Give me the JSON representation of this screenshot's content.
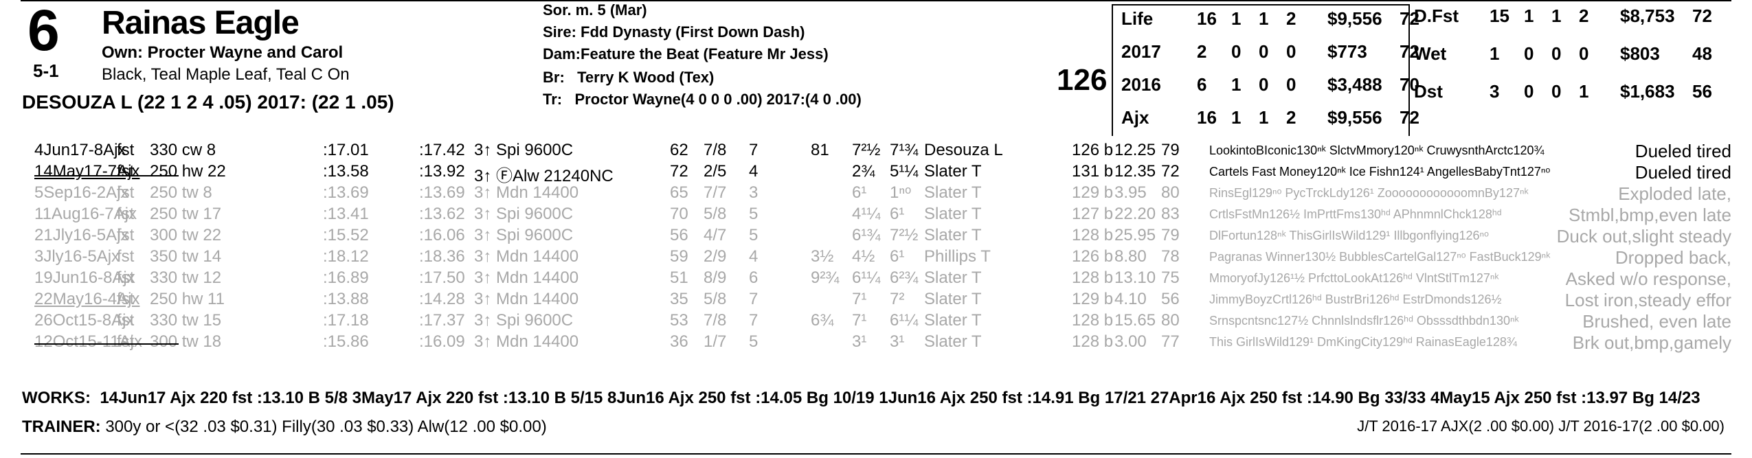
{
  "entry": {
    "post_position": "6",
    "odds": "5-1",
    "horse_name": "Rainas Eagle",
    "owner": "Own: Procter Wayne and Carol",
    "silks": "Black, Teal Maple Leaf, Teal C On",
    "jockey_line": "DESOUZA L (22 1 2 4 .05) 2017: (22 1 .05)",
    "weight": "126"
  },
  "pedigree": {
    "sex_age": "Sor. m. 5 (Mar)",
    "sire_label": "Sire:",
    "sire": "Fdd Dynasty (First Down Dash)",
    "dam_label": "Dam:",
    "dam": "Feature the Beat (Feature Mr Jess)",
    "breeder_label": "Br:",
    "breeder": "Terry K Wood (Tex)",
    "trainer_label": "Tr:",
    "trainer": "Proctor Wayne(4 0 0 0 .00) 2017:(4 0 .00)"
  },
  "records_left": [
    {
      "label": "Life",
      "starts": "16",
      "w": "1",
      "p": "1",
      "s": "2",
      "earn": "$9,556",
      "sp": "72"
    },
    {
      "label": "2017",
      "starts": "2",
      "w": "0",
      "p": "0",
      "s": "0",
      "earn": "$773",
      "sp": "72"
    },
    {
      "label": "2016",
      "starts": "6",
      "w": "1",
      "p": "0",
      "s": "0",
      "earn": "$3,488",
      "sp": "70"
    },
    {
      "label": "Ajx",
      "starts": "16",
      "w": "1",
      "p": "1",
      "s": "2",
      "earn": "$9,556",
      "sp": "72"
    }
  ],
  "records_right": [
    {
      "label": "D.Fst",
      "starts": "15",
      "w": "1",
      "p": "1",
      "s": "2",
      "earn": "$8,753",
      "sp": "72"
    },
    {
      "label": "Wet",
      "starts": "1",
      "w": "0",
      "p": "0",
      "s": "0",
      "earn": "$803",
      "sp": "48"
    },
    {
      "label": "Dst",
      "starts": "3",
      "w": "0",
      "p": "0",
      "s": "1",
      "earn": "$1,683",
      "sp": "56"
    }
  ],
  "races": [
    {
      "date": "4Jun17-8Ajx",
      "cond": "fst",
      "dist": "330 cw 8",
      "f1": ":17.01",
      "f2": ":17.42",
      "cls": "3↑ Spi 9600C",
      "sp": "62",
      "pp": "7/8",
      "st": "7",
      "c1": "81",
      "c2": "7²½",
      "fin": "7¹¾",
      "jock": "Desouza L",
      "wt": "126 b",
      "odds": "12.25",
      "ix": "79",
      "top3": "LookintoBIconic130ⁿᵏ SlctvMmory120ⁿᵏ CruwysnthArctc120¾",
      "comment": "Dueled tired",
      "dim": false,
      "ul": false
    },
    {
      "date": "14May17-7Ajx",
      "cond": "fst",
      "dist": "250 hw 22",
      "f1": ":13.58",
      "f2": ":13.92",
      "cls": "3↑ ⒻAlw 21240NC",
      "sp": "72",
      "pp": "2/5",
      "st": "4",
      "c1": "",
      "c2": "2¾",
      "fin": "5¹¼",
      "jock": "Slater T",
      "wt": "131 b",
      "odds": "12.35",
      "ix": "72",
      "top3": "Cartels Fast Money120ⁿᵏ Ice Fishn124¹ AngellesBabyTnt127ⁿᵒ",
      "comment": "Dueled tired",
      "dim": false,
      "ul": true
    },
    {
      "date": "5Sep16-2Ajx",
      "cond": "fst",
      "dist": "250 tw 8",
      "f1": ":13.69",
      "f2": ":13.69",
      "cls": "3↑ Mdn 14400",
      "sp": "65",
      "pp": "7/7",
      "st": "3",
      "c1": "",
      "c2": "6¹",
      "fin": "1ⁿᵒ",
      "jock": "Slater T",
      "wt": "129 b",
      "odds": "3.95",
      "ix": "80",
      "top3": "RinsEgl129ⁿᵒ PycTrckLdy126¹ ZoooooooooooomnBy127ⁿᵏ",
      "comment": "Exploded late,",
      "dim": true,
      "ul": false
    },
    {
      "date": "11Aug16-7Ajx",
      "cond": "fst",
      "dist": "250 tw 17",
      "f1": ":13.41",
      "f2": ":13.62",
      "cls": "3↑ Spi 9600C",
      "sp": "70",
      "pp": "5/8",
      "st": "5",
      "c1": "",
      "c2": "4¹¼",
      "fin": "6¹",
      "jock": "Slater T",
      "wt": "127 b",
      "odds": "22.20",
      "ix": "83",
      "top3": "CrtlsFstMn126½ ImPrttFms130ʰᵈ APhnmnlChck128ʰᵈ",
      "comment": "Stmbl,bmp,even late",
      "dim": true,
      "ul": false
    },
    {
      "date": "21Jly16-5Ajx",
      "cond": "fst",
      "dist": "300 tw 22",
      "f1": ":15.52",
      "f2": ":16.06",
      "cls": "3↑ Spi 9600C",
      "sp": "56",
      "pp": "4/7",
      "st": "5",
      "c1": "",
      "c2": "6¹¾",
      "fin": "7²½",
      "jock": "Slater T",
      "wt": "128 b",
      "odds": "25.95",
      "ix": "79",
      "top3": "DlFortun128ⁿᵏ ThisGirlIsWild129¹ Illbgonflying126ⁿᵒ",
      "comment": "Duck out,slight steady",
      "dim": true,
      "ul": false
    },
    {
      "date": "3Jly16-5Ajx",
      "cond": "fst",
      "dist": "350 tw 14",
      "f1": ":18.12",
      "f2": ":18.36",
      "cls": "3↑ Mdn 14400",
      "sp": "59",
      "pp": "2/9",
      "st": "4",
      "c1": "3½",
      "c2": "4½",
      "fin": "6¹",
      "jock": "Phillips T",
      "wt": "126 b",
      "odds": "8.80",
      "ix": "78",
      "top3": "Pagranas Winner130½ BubblesCartelGal127ⁿᵒ FastBuck129ⁿᵏ",
      "comment": "Dropped back,",
      "dim": true,
      "ul": false
    },
    {
      "date": "19Jun16-8Ajx",
      "cond": "fst",
      "dist": "330 tw 12",
      "f1": ":16.89",
      "f2": ":17.50",
      "cls": "3↑ Mdn 14400",
      "sp": "51",
      "pp": "8/9",
      "st": "6",
      "c1": "9²¾",
      "c2": "6¹¼",
      "fin": "6²¾",
      "jock": "Slater T",
      "wt": "128 b",
      "odds": "13.10",
      "ix": "75",
      "top3": "MmoryofJy126¹½ PrfcttoLookAt126ʰᵈ VlntStlTm127ⁿᵏ",
      "comment": "Asked w/o response,",
      "dim": true,
      "ul": false
    },
    {
      "date": "22May16-4Ajx",
      "cond": "fst",
      "dist": "250 hw 11",
      "f1": ":13.88",
      "f2": ":14.28",
      "cls": "3↑ Mdn 14400",
      "sp": "35",
      "pp": "5/8",
      "st": "7",
      "c1": "",
      "c2": "7¹",
      "fin": "7²",
      "jock": "Slater T",
      "wt": "129 b",
      "odds": "4.10",
      "ix": "56",
      "top3": "JimmyBoyzCrtl126ʰᵈ BustrBri126ʰᵈ EstrDmonds126½",
      "comment": "Lost iron,steady effor",
      "dim": true,
      "ul": true
    },
    {
      "date": "26Oct15-8Ajx",
      "cond": "fst",
      "dist": "330 tw 15",
      "f1": ":17.18",
      "f2": ":17.37",
      "cls": "3↑ Spi 9600C",
      "sp": "53",
      "pp": "7/8",
      "st": "7",
      "c1": "6¾",
      "c2": "7¹",
      "fin": "6¹¼",
      "jock": "Slater T",
      "wt": "128 b",
      "odds": "15.65",
      "ix": "80",
      "top3": "Srnspcntsnc127½ Chnnlslndsflr126ʰᵈ Obsssdthbdn130ⁿᵏ",
      "comment": "Brushed, even late",
      "dim": true,
      "ul": false
    },
    {
      "date": "12Oct15-11Ajx",
      "cond": "fst",
      "dist": "300 tw 18",
      "f1": ":15.86",
      "f2": ":16.09",
      "cls": "3↑ Mdn 14400",
      "sp": "36",
      "pp": "1/7",
      "st": "5",
      "c1": "",
      "c2": "3¹",
      "fin": "3¹",
      "jock": "Slater T",
      "wt": "128 b",
      "odds": "3.00",
      "ix": "77",
      "top3": "This GirlIsWild129¹ DmKingCity129ʰᵈ RainasEagle128¾",
      "comment": "Brk out,bmp,gamely",
      "dim": true,
      "ul": false
    }
  ],
  "works_label": "WORKS:",
  "works": "14Jun17 Ajx 220 fst :13.10 B 5/8   3May17 Ajx 220 fst :13.10 B 5/15   8Jun16 Ajx 250 fst :14.05 Bg 10/19   1Jun16 Ajx 250 fst :14.91 Bg 17/21   27Apr16 Ajx 250 fst :14.90 Bg 33/33   4May15 Ajx 250 fst :13.97 Bg 14/23",
  "trainer_label": "TRAINER:",
  "trainer_stats": "300y or <(32 .03 $0.31) Filly(30 .03 $0.33) Alw(12 .00 $0.00)",
  "jt_stats": "J/T 2016-17 AJX(2 .00 $0.00)  J/T 2016-17(2 .00 $0.00)"
}
